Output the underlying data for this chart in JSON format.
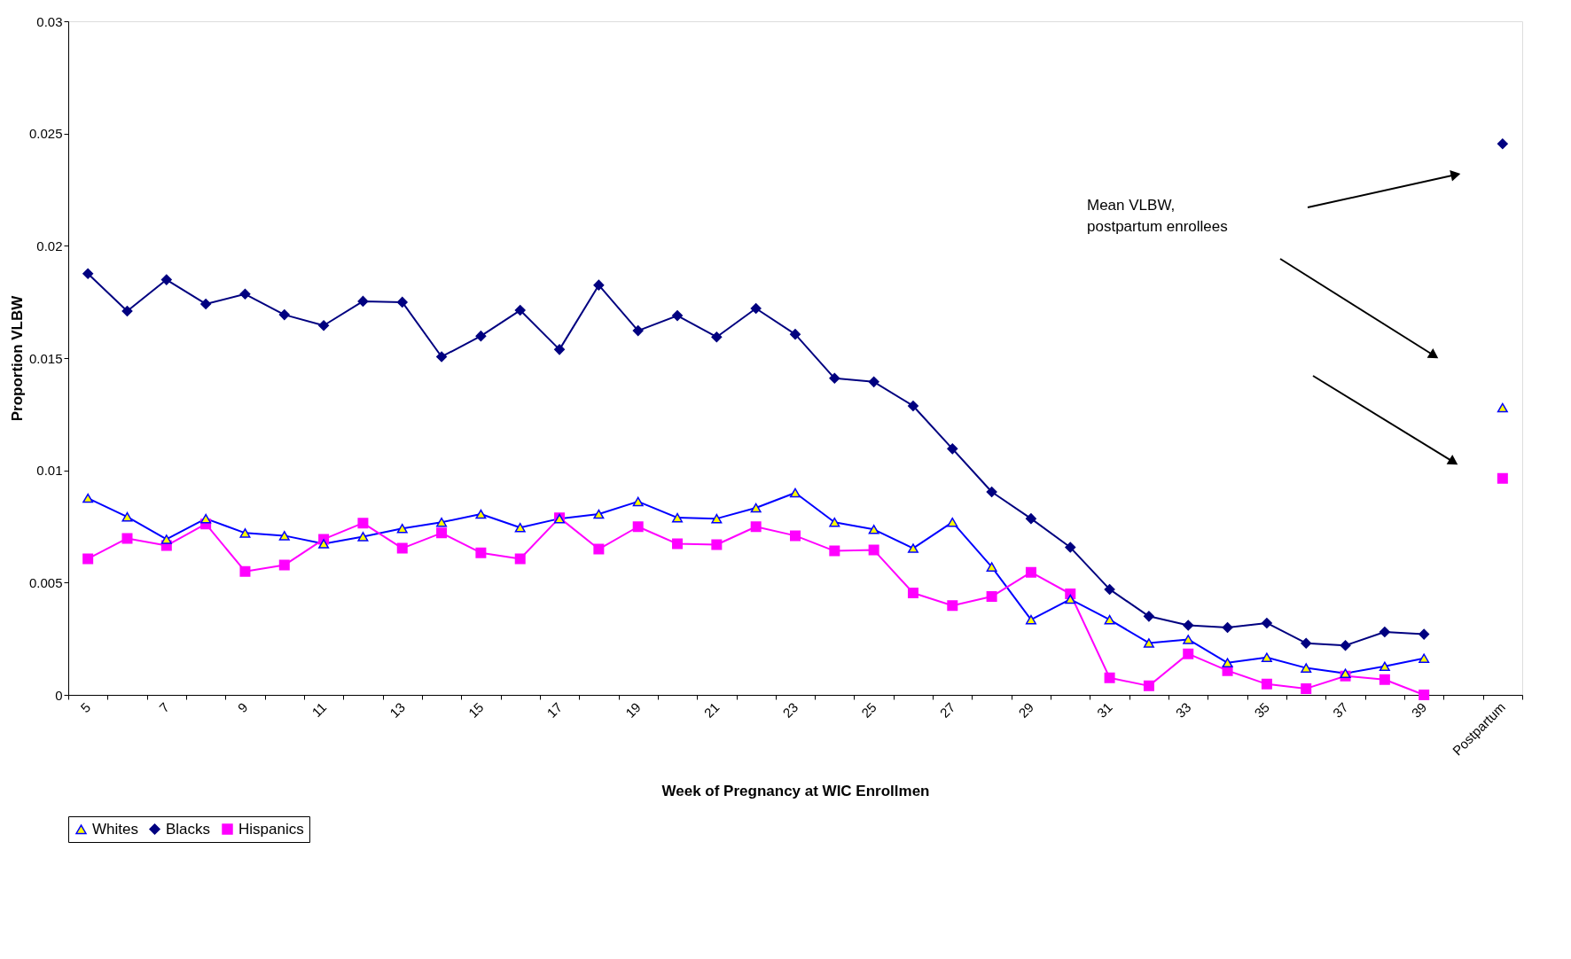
{
  "chart_data": {
    "type": "line",
    "xlabel": "Week of Pregnancy at WIC Enrollmen",
    "ylabel": "Proportion VLBW",
    "categories": [
      "5",
      null,
      "7",
      null,
      "9",
      null,
      "11",
      null,
      "13",
      null,
      "15",
      null,
      "17",
      null,
      "19",
      null,
      "21",
      null,
      "23",
      null,
      "25",
      null,
      "27",
      null,
      "29",
      null,
      "31",
      null,
      "33",
      null,
      "35",
      null,
      "37",
      null,
      "39",
      null,
      "Postpartum"
    ],
    "series": [
      {
        "name": "Whites",
        "color": "#0000ff",
        "marker": "triangle",
        "values": [
          0.00876,
          0.00793,
          0.00693,
          0.00785,
          0.00721,
          0.00709,
          0.00673,
          0.00705,
          0.00741,
          0.00769,
          0.00805,
          0.00745,
          0.00785,
          0.00805,
          0.00861,
          0.00789,
          0.00785,
          0.00833,
          0.009,
          0.00769,
          0.00737,
          0.00653,
          0.00769,
          0.0057,
          0.00335,
          0.00426,
          0.00335,
          0.00231,
          0.00247,
          0.00143,
          0.00167,
          0.0012,
          0.00096,
          0.00127,
          0.00163,
          null,
          0.01279
        ]
      },
      {
        "name": "Blacks",
        "color": "#000080",
        "marker": "diamond",
        "values": [
          0.01876,
          0.01709,
          0.01849,
          0.01741,
          0.01785,
          0.01693,
          0.01645,
          0.01753,
          0.01749,
          0.01506,
          0.01598,
          0.01713,
          0.01538,
          0.01825,
          0.01622,
          0.01689,
          0.01594,
          0.01721,
          0.01606,
          0.0141,
          0.01394,
          0.01287,
          0.01096,
          0.00904,
          0.00785,
          0.00657,
          0.0047,
          0.0035,
          0.0031,
          0.003,
          0.0032,
          0.0023,
          0.0022,
          0.0028,
          0.0027,
          null,
          0.02454
        ]
      },
      {
        "name": "Hispanics",
        "color": "#ff00ff",
        "marker": "square",
        "values": [
          0.00606,
          0.00697,
          0.00665,
          0.00761,
          0.0055,
          0.00578,
          0.00693,
          0.00765,
          0.00653,
          0.00721,
          0.00633,
          0.00606,
          0.00789,
          0.00649,
          0.00749,
          0.00673,
          0.00669,
          0.00749,
          0.00709,
          0.00641,
          0.00645,
          0.00454,
          0.00398,
          0.00438,
          0.00546,
          0.0045,
          0.00076,
          0.0004,
          0.00183,
          0.00108,
          0.00048,
          0.00028,
          0.00084,
          0.00068,
          0,
          null,
          0.00964
        ]
      }
    ],
    "ylim": [
      0,
      0.03
    ],
    "yticks": [
      0,
      0.005,
      0.01,
      0.015,
      0.02,
      0.025,
      0.03
    ],
    "annotations": [
      "Mean VLBW,\npostpartum enrollees"
    ],
    "legend": "bottom",
    "grid": false
  }
}
